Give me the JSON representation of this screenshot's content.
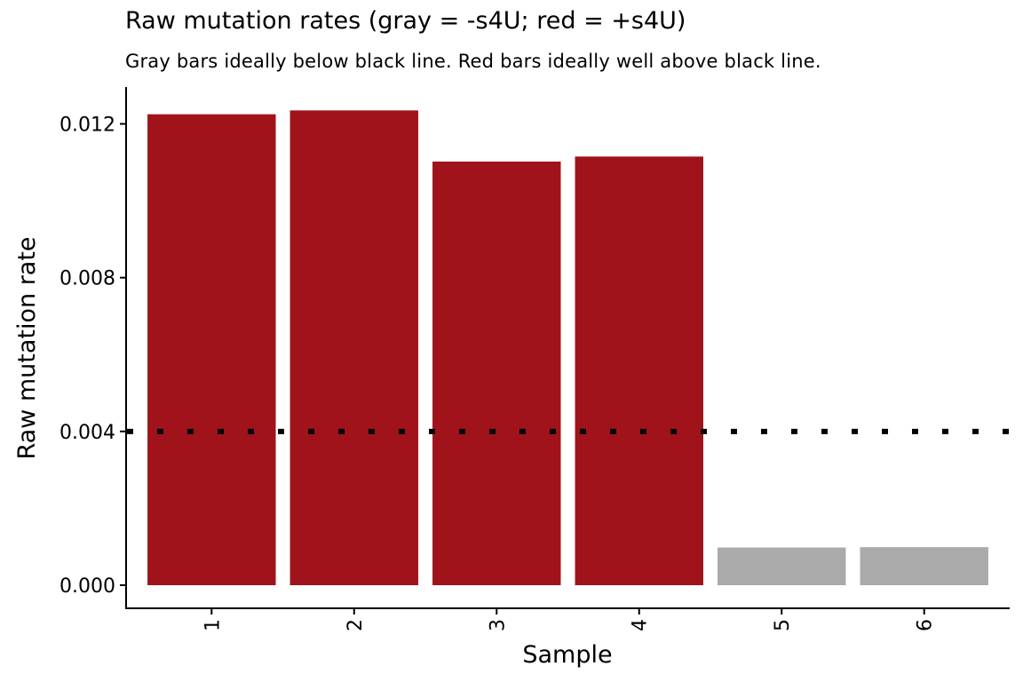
{
  "chart_data": {
    "type": "bar",
    "title": "Raw mutation rates (gray = -s4U; red = +s4U)",
    "subtitle": "Gray bars ideally below black line. Red bars ideally well above black line.",
    "xlabel": "Sample",
    "ylabel": "Raw mutation rate",
    "categories": [
      "1",
      "2",
      "3",
      "4",
      "5",
      "6"
    ],
    "values": [
      0.01225,
      0.01235,
      0.01102,
      0.01115,
      0.00098,
      0.00099
    ],
    "bar_colors": [
      "#A0131B",
      "#A0131B",
      "#A0131B",
      "#A0131B",
      "#AAAAAA",
      "#AAAAAA"
    ],
    "series_meaning": {
      "gray": "-s4U",
      "red": "+s4U"
    },
    "reference_line": {
      "y": 0.004,
      "style": "dotted",
      "color": "#000000"
    },
    "yticks": [
      0.0,
      0.004,
      0.008,
      0.012
    ],
    "ytick_labels": [
      "0.000",
      "0.004",
      "0.008",
      "0.012"
    ],
    "ylim": [
      -0.0006,
      0.0129
    ],
    "x_tick_label_rotation": -90,
    "grid": false,
    "legend": "none"
  }
}
